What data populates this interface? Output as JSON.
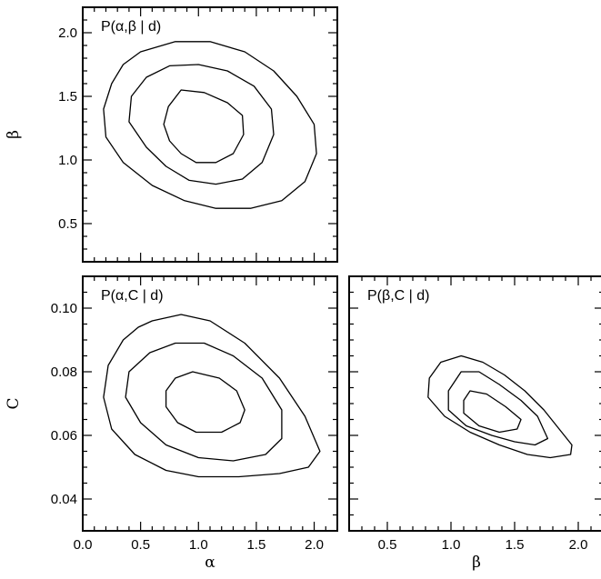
{
  "chart_data": [
    {
      "type": "contour",
      "title": "P(α,β | d)",
      "xlabel": "",
      "ylabel": "β",
      "xlim": [
        0.0,
        2.2
      ],
      "ylim": [
        0.2,
        2.2
      ],
      "xticks": [],
      "yticks": [
        "0.5",
        "1.0",
        "1.5",
        "2.0"
      ],
      "ytick_values": [
        0.5,
        1.0,
        1.5,
        2.0
      ],
      "xtick_marks": [
        0.0,
        0.5,
        1.0,
        1.5,
        2.0
      ],
      "contours": [
        [
          [
            0.85,
            1.55
          ],
          [
            1.05,
            1.53
          ],
          [
            1.25,
            1.45
          ],
          [
            1.38,
            1.35
          ],
          [
            1.39,
            1.2
          ],
          [
            1.3,
            1.05
          ],
          [
            1.15,
            0.98
          ],
          [
            0.98,
            0.98
          ],
          [
            0.85,
            1.05
          ],
          [
            0.75,
            1.15
          ],
          [
            0.7,
            1.28
          ],
          [
            0.74,
            1.42
          ]
        ],
        [
          [
            0.75,
            1.74
          ],
          [
            1.0,
            1.75
          ],
          [
            1.25,
            1.7
          ],
          [
            1.48,
            1.58
          ],
          [
            1.63,
            1.4
          ],
          [
            1.65,
            1.2
          ],
          [
            1.55,
            0.98
          ],
          [
            1.38,
            0.85
          ],
          [
            1.15,
            0.81
          ],
          [
            0.92,
            0.84
          ],
          [
            0.72,
            0.95
          ],
          [
            0.55,
            1.1
          ],
          [
            0.4,
            1.3
          ],
          [
            0.42,
            1.5
          ],
          [
            0.55,
            1.65
          ]
        ],
        [
          [
            0.5,
            1.85
          ],
          [
            0.8,
            1.93
          ],
          [
            1.1,
            1.93
          ],
          [
            1.4,
            1.85
          ],
          [
            1.65,
            1.7
          ],
          [
            1.85,
            1.5
          ],
          [
            2.0,
            1.28
          ],
          [
            2.02,
            1.05
          ],
          [
            1.92,
            0.83
          ],
          [
            1.72,
            0.68
          ],
          [
            1.45,
            0.62
          ],
          [
            1.15,
            0.62
          ],
          [
            0.88,
            0.68
          ],
          [
            0.6,
            0.8
          ],
          [
            0.35,
            0.98
          ],
          [
            0.2,
            1.18
          ],
          [
            0.18,
            1.4
          ],
          [
            0.25,
            1.6
          ],
          [
            0.35,
            1.75
          ]
        ]
      ]
    },
    {
      "type": "contour",
      "title": "P(α,C | d)",
      "xlabel": "α",
      "ylabel": "C",
      "xlim": [
        0.0,
        2.2
      ],
      "ylim": [
        0.03,
        0.11
      ],
      "xticks": [
        "0.0",
        "0.5",
        "1.0",
        "1.5",
        "2.0"
      ],
      "xtick_values": [
        0.0,
        0.5,
        1.0,
        1.5,
        2.0
      ],
      "yticks": [
        "0.04",
        "0.06",
        "0.08",
        "0.10"
      ],
      "ytick_values": [
        0.04,
        0.06,
        0.08,
        0.1
      ],
      "contours": [
        [
          [
            0.95,
            0.08
          ],
          [
            1.18,
            0.078
          ],
          [
            1.33,
            0.074
          ],
          [
            1.4,
            0.068
          ],
          [
            1.36,
            0.064
          ],
          [
            1.2,
            0.061
          ],
          [
            0.98,
            0.061
          ],
          [
            0.82,
            0.064
          ],
          [
            0.72,
            0.069
          ],
          [
            0.72,
            0.074
          ],
          [
            0.8,
            0.078
          ]
        ],
        [
          [
            0.8,
            0.089
          ],
          [
            1.05,
            0.089
          ],
          [
            1.3,
            0.085
          ],
          [
            1.55,
            0.078
          ],
          [
            1.72,
            0.068
          ],
          [
            1.72,
            0.059
          ],
          [
            1.58,
            0.054
          ],
          [
            1.3,
            0.052
          ],
          [
            1.0,
            0.053
          ],
          [
            0.72,
            0.057
          ],
          [
            0.5,
            0.064
          ],
          [
            0.37,
            0.072
          ],
          [
            0.4,
            0.08
          ],
          [
            0.58,
            0.086
          ]
        ],
        [
          [
            0.6,
            0.096
          ],
          [
            0.85,
            0.098
          ],
          [
            1.1,
            0.096
          ],
          [
            1.4,
            0.089
          ],
          [
            1.7,
            0.078
          ],
          [
            1.92,
            0.066
          ],
          [
            2.05,
            0.055
          ],
          [
            1.95,
            0.05
          ],
          [
            1.7,
            0.048
          ],
          [
            1.35,
            0.047
          ],
          [
            1.0,
            0.047
          ],
          [
            0.72,
            0.049
          ],
          [
            0.45,
            0.054
          ],
          [
            0.25,
            0.062
          ],
          [
            0.18,
            0.072
          ],
          [
            0.22,
            0.082
          ],
          [
            0.35,
            0.09
          ],
          [
            0.48,
            0.094
          ]
        ]
      ]
    },
    {
      "type": "contour",
      "title": "P(β,C | d)",
      "xlabel": "β",
      "ylabel": "",
      "xlim": [
        0.2,
        2.2
      ],
      "ylim": [
        0.03,
        0.11
      ],
      "xticks": [
        "0.5",
        "1.0",
        "1.5",
        "2.0"
      ],
      "xtick_values": [
        0.5,
        1.0,
        1.5,
        2.0
      ],
      "yticks": [],
      "ytick_marks": [
        0.04,
        0.06,
        0.08,
        0.1
      ],
      "contours": [
        [
          [
            1.15,
            0.074
          ],
          [
            1.28,
            0.073
          ],
          [
            1.43,
            0.069
          ],
          [
            1.55,
            0.065
          ],
          [
            1.52,
            0.062
          ],
          [
            1.38,
            0.061
          ],
          [
            1.22,
            0.063
          ],
          [
            1.1,
            0.067
          ],
          [
            1.1,
            0.071
          ]
        ],
        [
          [
            1.08,
            0.08
          ],
          [
            1.22,
            0.08
          ],
          [
            1.38,
            0.076
          ],
          [
            1.55,
            0.071
          ],
          [
            1.68,
            0.066
          ],
          [
            1.76,
            0.059
          ],
          [
            1.66,
            0.057
          ],
          [
            1.5,
            0.058
          ],
          [
            1.32,
            0.06
          ],
          [
            1.12,
            0.063
          ],
          [
            0.98,
            0.068
          ],
          [
            0.98,
            0.074
          ]
        ],
        [
          [
            0.92,
            0.083
          ],
          [
            1.08,
            0.085
          ],
          [
            1.25,
            0.083
          ],
          [
            1.42,
            0.079
          ],
          [
            1.58,
            0.074
          ],
          [
            1.73,
            0.068
          ],
          [
            1.85,
            0.062
          ],
          [
            1.95,
            0.057
          ],
          [
            1.94,
            0.054
          ],
          [
            1.78,
            0.053
          ],
          [
            1.6,
            0.054
          ],
          [
            1.38,
            0.057
          ],
          [
            1.15,
            0.061
          ],
          [
            0.95,
            0.066
          ],
          [
            0.82,
            0.072
          ],
          [
            0.83,
            0.078
          ]
        ]
      ]
    }
  ]
}
